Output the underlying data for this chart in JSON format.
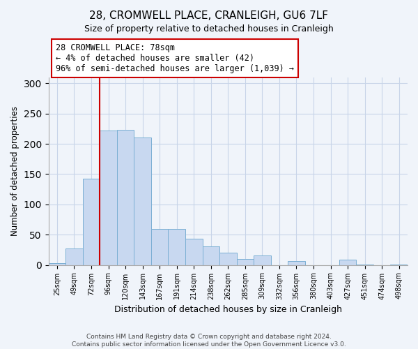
{
  "title": "28, CROMWELL PLACE, CRANLEIGH, GU6 7LF",
  "subtitle": "Size of property relative to detached houses in Cranleigh",
  "xlabel": "Distribution of detached houses by size in Cranleigh",
  "ylabel": "Number of detached properties",
  "bar_labels": [
    "25sqm",
    "49sqm",
    "72sqm",
    "96sqm",
    "120sqm",
    "143sqm",
    "167sqm",
    "191sqm",
    "214sqm",
    "238sqm",
    "262sqm",
    "285sqm",
    "309sqm",
    "332sqm",
    "356sqm",
    "380sqm",
    "403sqm",
    "427sqm",
    "451sqm",
    "474sqm",
    "498sqm"
  ],
  "bar_values": [
    3,
    27,
    143,
    222,
    223,
    210,
    60,
    60,
    43,
    31,
    20,
    10,
    16,
    0,
    6,
    0,
    0,
    9,
    1,
    0,
    1
  ],
  "bar_color": "#c8d8f0",
  "bar_edge_color": "#7bafd4",
  "vline_color": "#cc0000",
  "annotation_text": "28 CROMWELL PLACE: 78sqm\n← 4% of detached houses are smaller (42)\n96% of semi-detached houses are larger (1,039) →",
  "annotation_box_edge": "#cc0000",
  "ylim": [
    0,
    310
  ],
  "yticks": [
    0,
    50,
    100,
    150,
    200,
    250,
    300
  ],
  "footer_line1": "Contains HM Land Registry data © Crown copyright and database right 2024.",
  "footer_line2": "Contains public sector information licensed under the Open Government Licence v3.0.",
  "bg_color": "#f0f4fa",
  "grid_color": "#c8d4e8"
}
